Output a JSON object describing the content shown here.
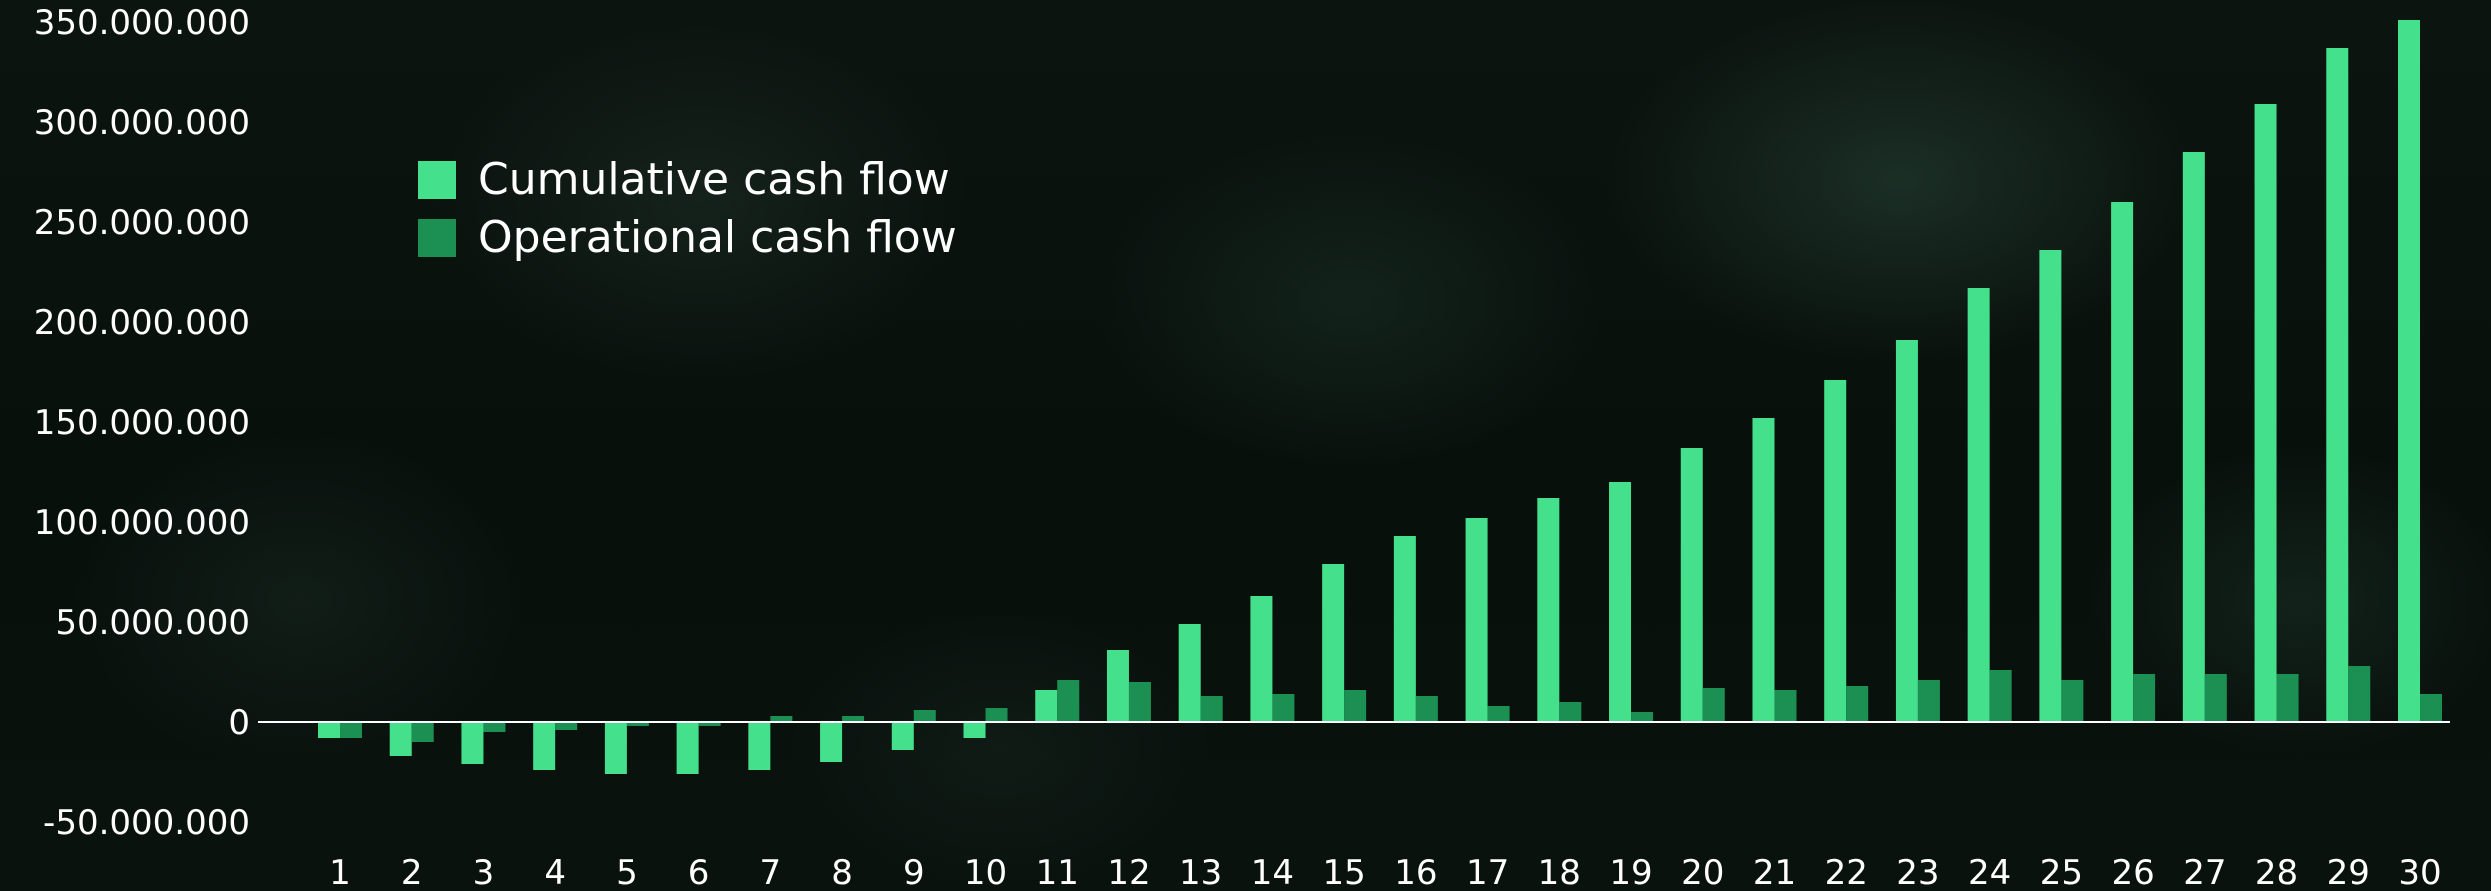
{
  "chart_data": {
    "type": "bar",
    "categories": [
      "1",
      "2",
      "3",
      "4",
      "5",
      "6",
      "7",
      "8",
      "9",
      "10",
      "11",
      "12",
      "13",
      "14",
      "15",
      "16",
      "17",
      "18",
      "19",
      "20",
      "21",
      "22",
      "23",
      "24",
      "25",
      "26",
      "27",
      "28",
      "29",
      "30"
    ],
    "series": [
      {
        "name": "Cumulative cash flow",
        "color": "#44e08c",
        "values": [
          -8000000,
          -17000000,
          -21000000,
          -24000000,
          -26000000,
          -26000000,
          -24000000,
          -20000000,
          -14000000,
          -8000000,
          16000000,
          36000000,
          49000000,
          63000000,
          79000000,
          93000000,
          102000000,
          112000000,
          120000000,
          137000000,
          152000000,
          171000000,
          191000000,
          217000000,
          236000000,
          260000000,
          285000000,
          309000000,
          337000000,
          351000000
        ]
      },
      {
        "name": "Operational cash flow",
        "color": "#1c8f52",
        "values": [
          -8000000,
          -10000000,
          -5000000,
          -4000000,
          -2000000,
          -2000000,
          3000000,
          3000000,
          6000000,
          7000000,
          21000000,
          20000000,
          13000000,
          14000000,
          16000000,
          13000000,
          8000000,
          10000000,
          5000000,
          17000000,
          16000000,
          18000000,
          21000000,
          26000000,
          21000000,
          24000000,
          24000000,
          24000000,
          28000000,
          14000000
        ]
      }
    ],
    "y_ticks": [
      "350.000.000",
      "300.000.000",
      "250.000.000",
      "200.000.000",
      "150.000.000",
      "100.000.000",
      "50.000.000",
      "0",
      "-50.000.000"
    ],
    "ylim": [
      -50000000,
      350000000
    ],
    "legend_position": "top-left",
    "grid": false,
    "title": "",
    "xlabel": "",
    "ylabel": ""
  }
}
